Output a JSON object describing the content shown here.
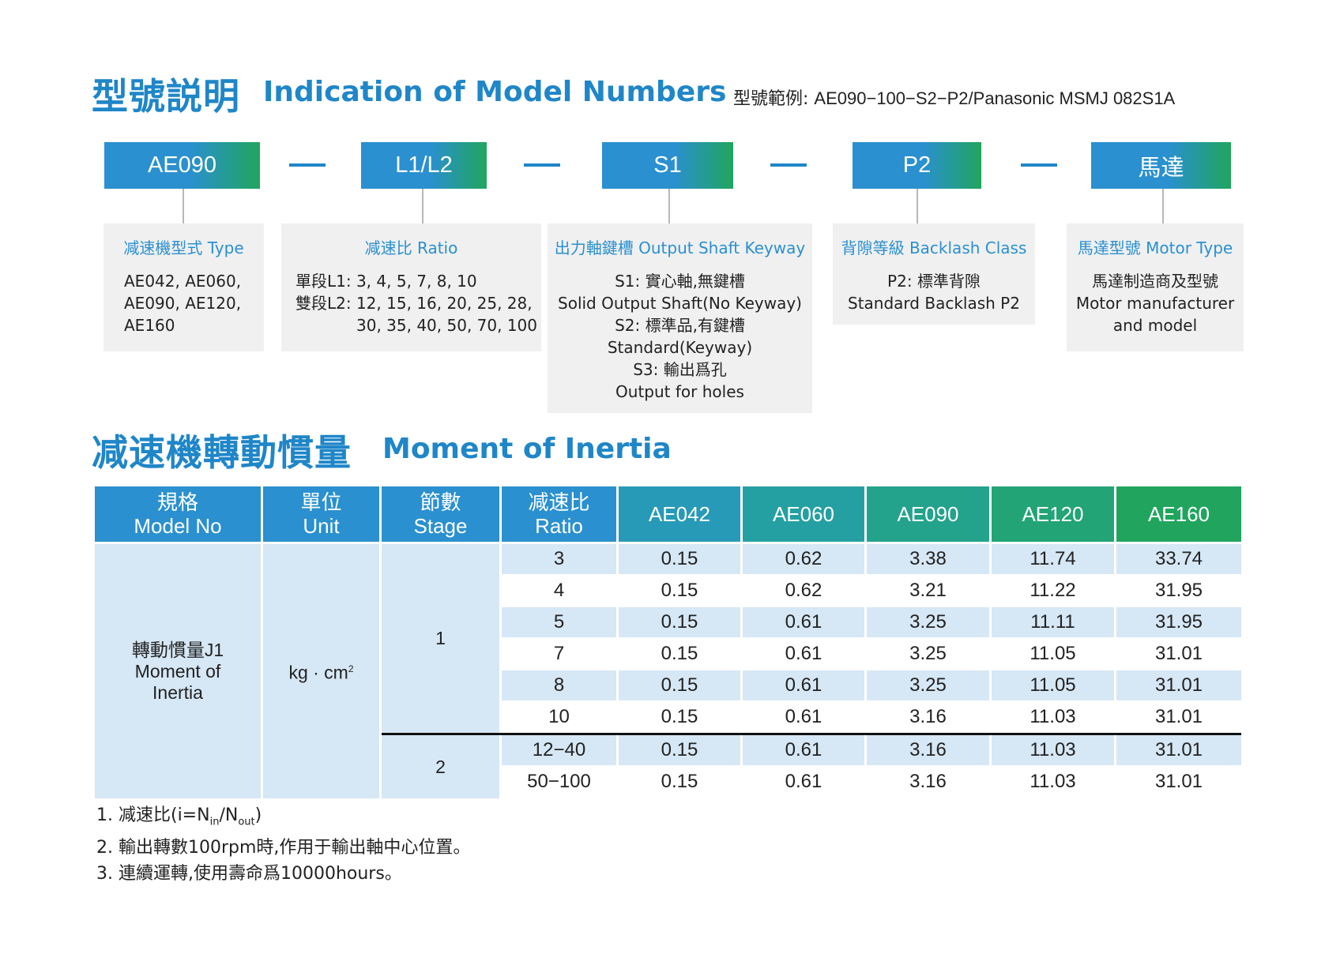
{
  "section1": {
    "title_zh": "型號説明",
    "title_en": "Indication of Model Numbers",
    "example_label": "型號範例:",
    "example_value": "AE090−100−S2−P2/Panasonic MSMJ 082S1A"
  },
  "codes": [
    {
      "label": "AE090"
    },
    {
      "label": "L1/L2"
    },
    {
      "label": "S1"
    },
    {
      "label": "P2"
    },
    {
      "label": "馬達"
    }
  ],
  "info": [
    {
      "title": "减速機型式 Type",
      "lines": [
        "AE042, AE060,",
        "AE090, AE120,",
        "AE160"
      ]
    },
    {
      "title": "减速比 Ratio",
      "lines": [
        "單段L1: 3, 4, 5, 7, 8, 10",
        "雙段L2: 12, 15, 16, 20, 25, 28,",
        "30, 35, 40, 50, 70, 100"
      ]
    },
    {
      "title": "出力軸鍵槽 Output Shaft Keyway",
      "lines": [
        "S1: 實心軸,無鍵槽",
        "Solid Output Shaft(No Keyway)",
        "S2: 標準品,有鍵槽",
        "Standard(Keyway)",
        "S3: 輸出爲孔",
        "Output for holes"
      ]
    },
    {
      "title": "背隙等級 Backlash Class",
      "lines": [
        "P2: 標準背隙",
        "Standard Backlash P2"
      ]
    },
    {
      "title": "馬達型號 Motor Type",
      "lines": [
        "馬達制造商及型號",
        "Motor manufacturer",
        "and model"
      ]
    }
  ],
  "section2": {
    "title_zh": "减速機轉動慣量",
    "title_en": "Moment of Inertia"
  },
  "table": {
    "headers": [
      {
        "zh": "規格",
        "en": "Model No"
      },
      {
        "zh": "單位",
        "en": "Unit"
      },
      {
        "zh": "節數",
        "en": "Stage"
      },
      {
        "zh": "减速比",
        "en": "Ratio"
      }
    ],
    "models": [
      "AE042",
      "AE060",
      "AE090",
      "AE120",
      "AE160"
    ],
    "spec_zh": "轉動慣量J1",
    "spec_en_1": "Moment of",
    "spec_en_2": "Inertia",
    "unit_base": "kg · cm",
    "unit_sup": "2",
    "stage1": "1",
    "stage2": "2",
    "rows": [
      {
        "ratio": "3",
        "values": [
          "0.15",
          "0.62",
          "3.38",
          "11.74",
          "33.74"
        ]
      },
      {
        "ratio": "4",
        "values": [
          "0.15",
          "0.62",
          "3.21",
          "11.22",
          "31.95"
        ]
      },
      {
        "ratio": "5",
        "values": [
          "0.15",
          "0.61",
          "3.25",
          "11.11",
          "31.95"
        ]
      },
      {
        "ratio": "7",
        "values": [
          "0.15",
          "0.61",
          "3.25",
          "11.05",
          "31.01"
        ]
      },
      {
        "ratio": "8",
        "values": [
          "0.15",
          "0.61",
          "3.25",
          "11.05",
          "31.01"
        ]
      },
      {
        "ratio": "10",
        "values": [
          "0.15",
          "0.61",
          "3.16",
          "11.03",
          "31.01"
        ]
      },
      {
        "ratio": "12−40",
        "values": [
          "0.15",
          "0.61",
          "3.16",
          "11.03",
          "31.01"
        ]
      },
      {
        "ratio": "50−100",
        "values": [
          "0.15",
          "0.61",
          "3.16",
          "11.03",
          "31.01"
        ]
      }
    ]
  },
  "notes": {
    "n1_pre": "1. 减速比(i=N",
    "n1_sub1": "in",
    "n1_mid": "/N",
    "n1_sub2": "out",
    "n1_post": ")",
    "n2": "2. 輸出轉數100rpm時,作用于輸出軸中心位置。",
    "n3": "3. 連續運轉,使用壽命爲10000hours。"
  },
  "colors": {
    "blue": "#2a90cf",
    "green": "#21a55e",
    "band": "#d6e7f5",
    "info_bg": "#f0f0f0"
  }
}
